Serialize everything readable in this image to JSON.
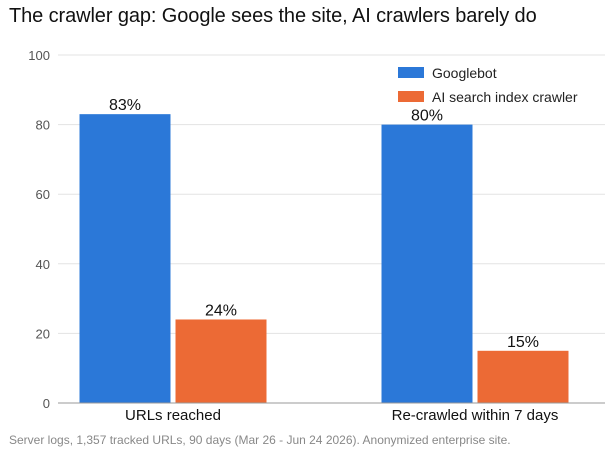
{
  "title": "The crawler gap: Google sees the site, AI crawlers barely do",
  "footnote": "Server logs, 1,357 tracked URLs, 90 days (Mar 26 - Jun 24 2026). Anonymized enterprise site.",
  "colors": {
    "googlebot": "#2B78D8",
    "ai_crawler": "#EC6A35",
    "grid": "#E3E3E3",
    "axis": "#999999"
  },
  "chart_data": {
    "type": "bar",
    "categories": [
      "URLs reached",
      "Re-crawled within 7 days"
    ],
    "series": [
      {
        "name": "Googlebot",
        "values": [
          83,
          80
        ],
        "labels": [
          "83%",
          "80%"
        ]
      },
      {
        "name": "AI search index crawler",
        "values": [
          24,
          15
        ],
        "labels": [
          "24%",
          "15%"
        ]
      }
    ],
    "ylim": [
      0,
      100
    ],
    "yticks": [
      0,
      20,
      40,
      60,
      80,
      100
    ],
    "xlabel": "",
    "ylabel": "",
    "grid": true,
    "legend_position": "top-right"
  }
}
